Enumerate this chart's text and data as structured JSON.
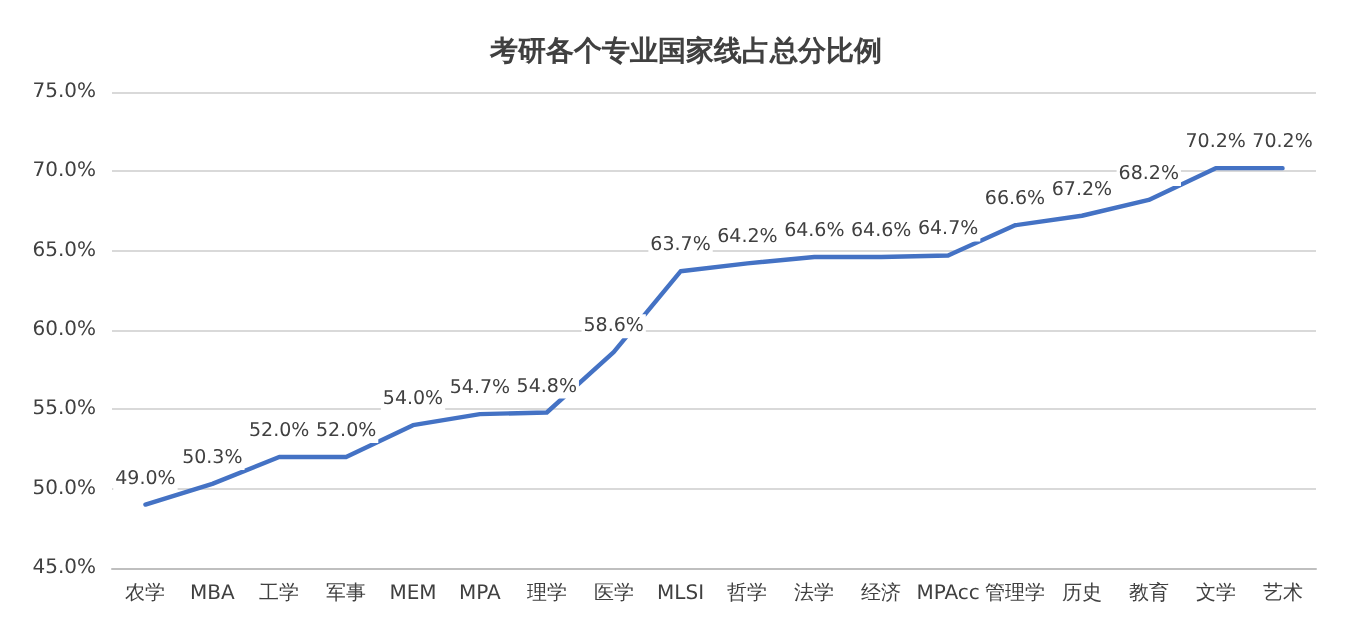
{
  "chart_data": {
    "type": "line",
    "title": "考研各个专业国家线占总分比例",
    "categories": [
      "农学",
      "MBA",
      "工学",
      "军事",
      "MEM",
      "MPA",
      "理学",
      "医学",
      "MLSI",
      "哲学",
      "法学",
      "经济",
      "MPAcc",
      "管理学",
      "历史",
      "教育",
      "文学",
      "艺术"
    ],
    "series": [
      {
        "color": "#4472c4",
        "values": [
          49.0,
          50.3,
          52.0,
          52.0,
          54.0,
          54.7,
          54.8,
          58.6,
          63.7,
          64.2,
          64.6,
          64.6,
          64.7,
          66.6,
          67.2,
          68.2,
          70.2,
          70.2
        ],
        "value_labels": [
          "49.0%",
          "50.3%",
          "52.0%",
          "52.0%",
          "54.0%",
          "54.7%",
          "54.8%",
          "58.6%",
          "63.7%",
          "64.2%",
          "64.6%",
          "64.6%",
          "64.7%",
          "66.6%",
          "67.2%",
          "68.2%",
          "70.2%",
          "70.2%"
        ]
      }
    ],
    "ylim": [
      45,
      75
    ],
    "yticks": [
      {
        "value": 45,
        "label": "45.0%"
      },
      {
        "value": 50,
        "label": "50.0%"
      },
      {
        "value": 55,
        "label": "55.0%"
      },
      {
        "value": 60,
        "label": "60.0%"
      },
      {
        "value": 65,
        "label": "65.0%"
      },
      {
        "value": 70,
        "label": "70.0%"
      },
      {
        "value": 75,
        "label": "75.0%"
      }
    ],
    "grid": "y",
    "marker": "none",
    "line_style": "solid"
  }
}
